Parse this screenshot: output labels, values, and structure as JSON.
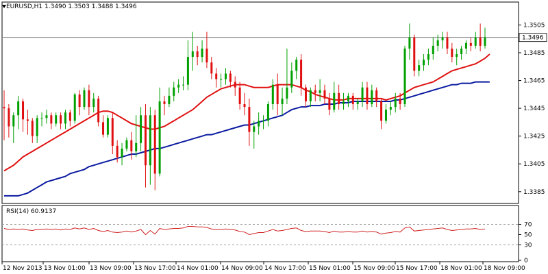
{
  "header": {
    "symbol": "EURUSD,H1",
    "ohlc": "1.3490 1.3503 1.3488 1.3496"
  },
  "rsi_header": "RSI(14) 60.9137",
  "current_price_label": "1.3496",
  "colors": {
    "bull_candle": "#00a000",
    "bear_candle": "#e01010",
    "ma_fast": "#e01010",
    "ma_slow": "#0a1aa0",
    "rsi_line": "#d02020",
    "grid": "#000000"
  },
  "chart_data": [
    {
      "type": "candlestick",
      "title": "EURUSD,H1",
      "ylim": [
        1.3378,
        1.352
      ],
      "y_ticks": [
        "1.3505",
        "1.3485",
        "1.3465",
        "1.3445",
        "1.3425",
        "1.3405",
        "1.3385"
      ],
      "x_ticks": [
        "12 Nov 2013",
        "13 Nov 01:00",
        "13 Nov 09:00",
        "13 Nov 17:00",
        "14 Nov 01:00",
        "14 Nov 09:00",
        "14 Nov 17:00",
        "15 Nov 01:00",
        "15 Nov 09:00",
        "15 Nov 17:00",
        "18 Nov 01:00",
        "18 Nov 09:00"
      ],
      "current_price": 1.3496,
      "candles": [
        [
          1.3446,
          1.3445,
          1.3458,
          1.3422
        ],
        [
          1.3445,
          1.3432,
          1.3448,
          1.3424
        ],
        [
          1.3432,
          1.344,
          1.3442,
          1.342
        ],
        [
          1.344,
          1.345,
          1.3454,
          1.343
        ],
        [
          1.345,
          1.3437,
          1.3452,
          1.3428
        ],
        [
          1.3437,
          1.3436,
          1.3444,
          1.3426
        ],
        [
          1.3436,
          1.3425,
          1.3438,
          1.342
        ],
        [
          1.3425,
          1.3438,
          1.344,
          1.342
        ],
        [
          1.3438,
          1.3438,
          1.3442,
          1.3432
        ],
        [
          1.3438,
          1.344,
          1.3444,
          1.3434
        ],
        [
          1.344,
          1.3434,
          1.3442,
          1.343
        ],
        [
          1.3434,
          1.344,
          1.3442,
          1.3432
        ],
        [
          1.344,
          1.3434,
          1.3442,
          1.343
        ],
        [
          1.3434,
          1.3442,
          1.3444,
          1.343
        ],
        [
          1.3442,
          1.3436,
          1.3444,
          1.3432
        ],
        [
          1.3436,
          1.3455,
          1.3456,
          1.3434
        ],
        [
          1.3455,
          1.3446,
          1.3458,
          1.344
        ],
        [
          1.3446,
          1.3458,
          1.346,
          1.3444
        ],
        [
          1.3458,
          1.3446,
          1.3462,
          1.344
        ],
        [
          1.3446,
          1.3452,
          1.3456,
          1.3442
        ],
        [
          1.3452,
          1.3435,
          1.3454,
          1.3432
        ],
        [
          1.3435,
          1.3426,
          1.344,
          1.3424
        ],
        [
          1.3426,
          1.3438,
          1.344,
          1.3424
        ],
        [
          1.3438,
          1.3418,
          1.3442,
          1.3412
        ],
        [
          1.3418,
          1.341,
          1.3422,
          1.3406
        ],
        [
          1.341,
          1.3416,
          1.342,
          1.3404
        ],
        [
          1.3416,
          1.3422,
          1.3424,
          1.3414
        ],
        [
          1.3422,
          1.3414,
          1.3428,
          1.3408
        ],
        [
          1.3414,
          1.342,
          1.344,
          1.341
        ],
        [
          1.342,
          1.344,
          1.3446,
          1.3414
        ],
        [
          1.344,
          1.3404,
          1.3448,
          1.3388
        ],
        [
          1.3404,
          1.344,
          1.3446,
          1.339
        ],
        [
          1.344,
          1.3398,
          1.3444,
          1.3386
        ],
        [
          1.3398,
          1.345,
          1.346,
          1.3396
        ],
        [
          1.345,
          1.3448,
          1.3454,
          1.344
        ],
        [
          1.3448,
          1.3454,
          1.346,
          1.3446
        ],
        [
          1.3454,
          1.346,
          1.3464,
          1.345
        ],
        [
          1.346,
          1.3462,
          1.3466,
          1.3456
        ],
        [
          1.3462,
          1.3462,
          1.3468,
          1.3458
        ],
        [
          1.3462,
          1.3482,
          1.3494,
          1.3458
        ],
        [
          1.3482,
          1.3486,
          1.35,
          1.3472
        ],
        [
          1.3486,
          1.3482,
          1.349,
          1.3476
        ],
        [
          1.3482,
          1.3488,
          1.3494,
          1.3478
        ],
        [
          1.3488,
          1.3478,
          1.35,
          1.3474
        ],
        [
          1.3478,
          1.347,
          1.3482,
          1.3466
        ],
        [
          1.347,
          1.3466,
          1.3474,
          1.346
        ],
        [
          1.3466,
          1.3466,
          1.347,
          1.346
        ],
        [
          1.3466,
          1.347,
          1.3474,
          1.3462
        ],
        [
          1.347,
          1.3464,
          1.3472,
          1.346
        ],
        [
          1.3464,
          1.346,
          1.3468,
          1.3454
        ],
        [
          1.346,
          1.3448,
          1.3464,
          1.3444
        ],
        [
          1.3448,
          1.3446,
          1.3456,
          1.344
        ],
        [
          1.3446,
          1.3428,
          1.3452,
          1.3418
        ],
        [
          1.3428,
          1.3432,
          1.3436,
          1.3416
        ],
        [
          1.3432,
          1.3436,
          1.3442,
          1.3426
        ],
        [
          1.3436,
          1.3436,
          1.344,
          1.343
        ],
        [
          1.3436,
          1.3448,
          1.345,
          1.3432
        ],
        [
          1.3448,
          1.3462,
          1.3466,
          1.3444
        ],
        [
          1.3462,
          1.3448,
          1.347,
          1.344
        ],
        [
          1.3448,
          1.3452,
          1.346,
          1.344
        ],
        [
          1.3452,
          1.346,
          1.3488,
          1.3448
        ],
        [
          1.346,
          1.3472,
          1.3478,
          1.3456
        ],
        [
          1.3472,
          1.348,
          1.3482,
          1.3466
        ],
        [
          1.348,
          1.346,
          1.3484,
          1.3454
        ],
        [
          1.346,
          1.345,
          1.3462,
          1.3446
        ],
        [
          1.345,
          1.3458,
          1.346,
          1.3446
        ],
        [
          1.3458,
          1.3456,
          1.3462,
          1.345
        ],
        [
          1.3456,
          1.3458,
          1.3466,
          1.345
        ],
        [
          1.3458,
          1.3452,
          1.3462,
          1.3448
        ],
        [
          1.3452,
          1.3444,
          1.3456,
          1.344
        ],
        [
          1.3444,
          1.3456,
          1.3464,
          1.3442
        ],
        [
          1.3456,
          1.3448,
          1.3462,
          1.3444
        ],
        [
          1.3448,
          1.345,
          1.3456,
          1.3444
        ],
        [
          1.345,
          1.3454,
          1.3456,
          1.3446
        ],
        [
          1.3454,
          1.3448,
          1.3456,
          1.3444
        ],
        [
          1.3448,
          1.345,
          1.3452,
          1.3444
        ],
        [
          1.345,
          1.346,
          1.3464,
          1.3446
        ],
        [
          1.346,
          1.3448,
          1.3464,
          1.3444
        ],
        [
          1.3448,
          1.3458,
          1.3462,
          1.3446
        ],
        [
          1.3458,
          1.345,
          1.346,
          1.3446
        ],
        [
          1.345,
          1.3436,
          1.3452,
          1.343
        ],
        [
          1.3436,
          1.3444,
          1.3448,
          1.3434
        ],
        [
          1.3444,
          1.3446,
          1.345,
          1.344
        ],
        [
          1.3446,
          1.3452,
          1.3456,
          1.3442
        ],
        [
          1.3452,
          1.3448,
          1.3456,
          1.3444
        ],
        [
          1.3448,
          1.3488,
          1.349,
          1.3446
        ],
        [
          1.3488,
          1.3496,
          1.3506,
          1.348
        ],
        [
          1.3496,
          1.3472,
          1.3498,
          1.3468
        ],
        [
          1.3472,
          1.3476,
          1.348,
          1.3468
        ],
        [
          1.3476,
          1.348,
          1.3484,
          1.3472
        ],
        [
          1.348,
          1.3484,
          1.3488,
          1.3476
        ],
        [
          1.3484,
          1.349,
          1.3496,
          1.348
        ],
        [
          1.349,
          1.3494,
          1.3498,
          1.3486
        ],
        [
          1.3494,
          1.3496,
          1.35,
          1.3488
        ],
        [
          1.3496,
          1.3488,
          1.35,
          1.3484
        ],
        [
          1.3488,
          1.3482,
          1.3492,
          1.3478
        ],
        [
          1.3482,
          1.3484,
          1.3488,
          1.3476
        ],
        [
          1.3484,
          1.3488,
          1.349,
          1.348
        ],
        [
          1.3488,
          1.3492,
          1.3494,
          1.3484
        ],
        [
          1.3492,
          1.349,
          1.3496,
          1.3486
        ],
        [
          1.349,
          1.3496,
          1.35,
          1.3488
        ],
        [
          1.3496,
          1.349,
          1.3506,
          1.3486
        ],
        [
          1.349,
          1.3496,
          1.3503,
          1.3488
        ]
      ],
      "ma_fast": [
        1.34,
        1.3402,
        1.3404,
        1.3407,
        1.341,
        1.3412,
        1.3414,
        1.3416,
        1.3418,
        1.342,
        1.3422,
        1.3424,
        1.3426,
        1.3428,
        1.343,
        1.3432,
        1.3434,
        1.3436,
        1.3438,
        1.344,
        1.3442,
        1.3443,
        1.3443,
        1.3442,
        1.344,
        1.3438,
        1.3436,
        1.3434,
        1.3433,
        1.3432,
        1.3431,
        1.343,
        1.343,
        1.3431,
        1.3432,
        1.3434,
        1.3436,
        1.3438,
        1.344,
        1.3442,
        1.3444,
        1.3447,
        1.345,
        1.3453,
        1.3455,
        1.3457,
        1.3459,
        1.346,
        1.3461,
        1.3462,
        1.3462,
        1.3462,
        1.3461,
        1.346,
        1.346,
        1.346,
        1.346,
        1.3461,
        1.3462,
        1.3462,
        1.3462,
        1.3462,
        1.3461,
        1.346,
        1.3458,
        1.3457,
        1.3455,
        1.3454,
        1.3453,
        1.3452,
        1.3451,
        1.3451,
        1.3451,
        1.3452,
        1.3452,
        1.3452,
        1.3452,
        1.3452,
        1.3452,
        1.3452,
        1.3452,
        1.3451,
        1.3452,
        1.3453,
        1.3454,
        1.3456,
        1.3458,
        1.346,
        1.3461,
        1.3462,
        1.3463,
        1.3464,
        1.3466,
        1.3468,
        1.347,
        1.3472,
        1.3473,
        1.3474,
        1.3475,
        1.3476,
        1.3477,
        1.3479,
        1.3481,
        1.3484
      ],
      "ma_slow": [
        1.3382,
        1.3382,
        1.3382,
        1.3382,
        1.3383,
        1.3384,
        1.3386,
        1.3388,
        1.339,
        1.3392,
        1.3393,
        1.3394,
        1.3395,
        1.3396,
        1.3398,
        1.3399,
        1.34,
        1.3401,
        1.3403,
        1.3404,
        1.3405,
        1.3406,
        1.3407,
        1.3408,
        1.3409,
        1.341,
        1.3411,
        1.3412,
        1.3412,
        1.3413,
        1.3414,
        1.3415,
        1.3416,
        1.3416,
        1.3417,
        1.3418,
        1.3419,
        1.342,
        1.3421,
        1.3422,
        1.3423,
        1.3424,
        1.3425,
        1.3426,
        1.3426,
        1.3427,
        1.3428,
        1.3429,
        1.343,
        1.3431,
        1.3432,
        1.3433,
        1.3433,
        1.3434,
        1.3435,
        1.3436,
        1.3437,
        1.3438,
        1.3439,
        1.344,
        1.3442,
        1.3444,
        1.3445,
        1.3446,
        1.3446,
        1.3447,
        1.3447,
        1.3447,
        1.3448,
        1.3448,
        1.3448,
        1.3449,
        1.3449,
        1.3449,
        1.345,
        1.345,
        1.345,
        1.345,
        1.345,
        1.345,
        1.345,
        1.345,
        1.345,
        1.3451,
        1.3451,
        1.3452,
        1.3453,
        1.3454,
        1.3455,
        1.3456,
        1.3457,
        1.3458,
        1.3459,
        1.346,
        1.3461,
        1.3462,
        1.3462,
        1.3463,
        1.3463,
        1.3463,
        1.3464,
        1.3464,
        1.3464,
        1.3464
      ],
      "gridlines": "none"
    },
    {
      "type": "line",
      "title": "RSI(14) 60.9137",
      "ylim": [
        0,
        100
      ],
      "y_ticks": [
        "70",
        "50",
        "30",
        "0"
      ],
      "levels": [
        70,
        30
      ],
      "values": [
        62,
        60,
        61,
        60,
        61,
        59,
        58,
        60,
        60,
        61,
        60,
        61,
        59,
        61,
        60,
        63,
        61,
        63,
        60,
        62,
        58,
        56,
        58,
        55,
        54,
        55,
        57,
        55,
        57,
        60,
        50,
        58,
        51,
        62,
        60,
        61,
        62,
        62,
        63,
        66,
        66,
        65,
        65,
        64,
        61,
        60,
        60,
        61,
        60,
        59,
        56,
        55,
        50,
        52,
        54,
        54,
        57,
        60,
        57,
        58,
        60,
        62,
        63,
        58,
        56,
        57,
        57,
        57,
        56,
        54,
        57,
        55,
        55,
        56,
        55,
        55,
        57,
        55,
        56,
        55,
        51,
        53,
        54,
        56,
        55,
        63,
        65,
        57,
        58,
        59,
        60,
        61,
        62,
        63,
        60,
        58,
        59,
        60,
        61,
        61,
        62,
        60,
        61
      ]
    }
  ]
}
